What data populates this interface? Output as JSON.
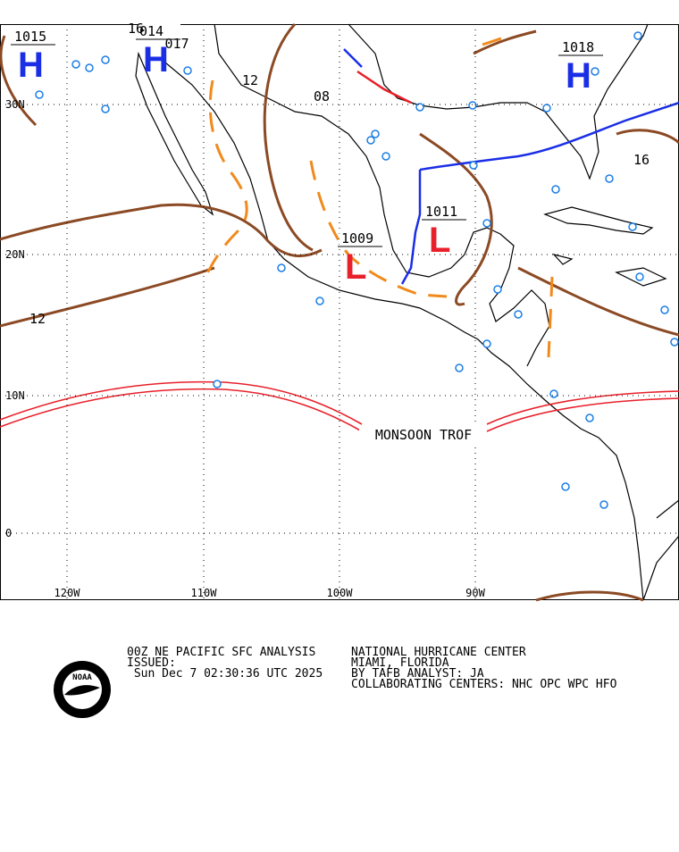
{
  "map": {
    "lat_labels": [
      "30N",
      "20N",
      "10N",
      "0"
    ],
    "lon_labels": [
      "120W",
      "110W",
      "100W",
      "90W"
    ],
    "pressure_centers": [
      {
        "type": "L",
        "value": "1009"
      },
      {
        "type": "L",
        "value": "1011"
      },
      {
        "type": "H",
        "value": "1018"
      },
      {
        "type": "H",
        "value": "1015"
      },
      {
        "type": "H",
        "value": "014"
      }
    ],
    "isobar_labels": [
      "12",
      "12",
      "08",
      "16",
      "16",
      "017"
    ],
    "feature_label": "MONSOON TROF"
  },
  "footer": {
    "left": [
      "00Z NE PACIFIC SFC ANALYSIS",
      "ISSUED:",
      " Sun Dec 7 02:30:36 UTC 2025"
    ],
    "right": [
      "NATIONAL HURRICANE CENTER",
      "MIAMI, FLORIDA",
      "BY TAFB ANALYST: JA",
      "COLLABORATING CENTERS: NHC OPC WPC HFO"
    ],
    "logo": "NOAA"
  }
}
